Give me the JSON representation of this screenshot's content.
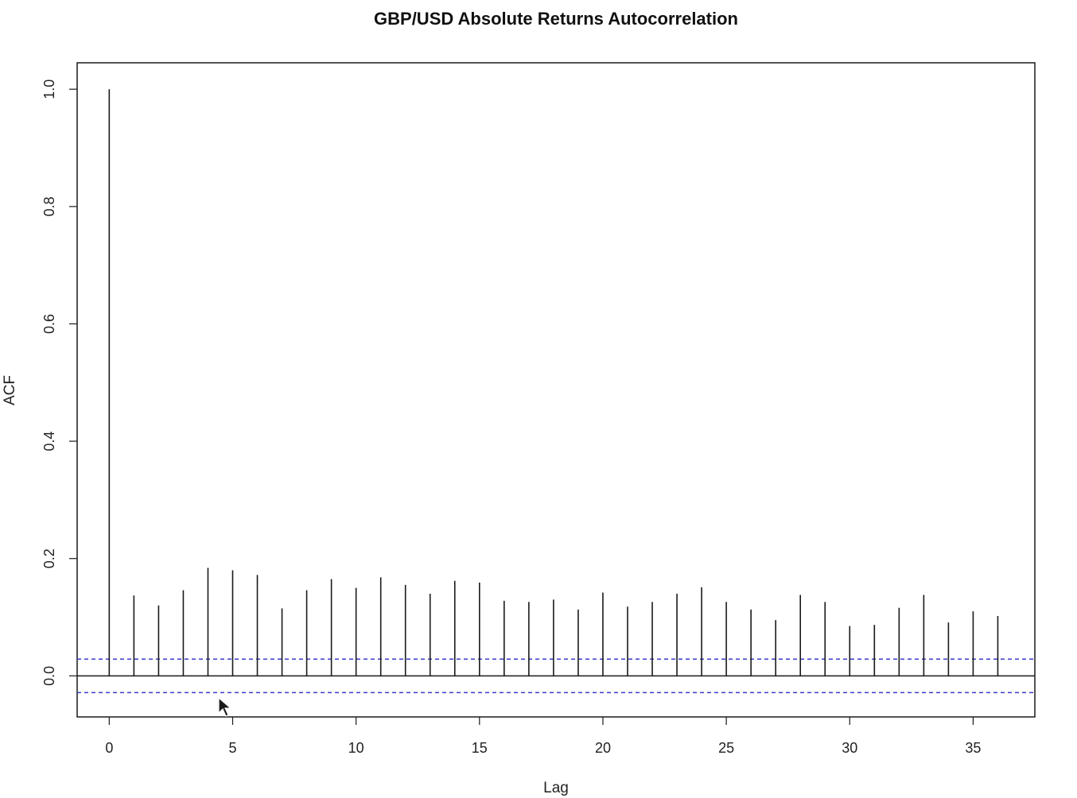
{
  "chart_data": {
    "type": "bar",
    "title": "GBP/USD Absolute Returns Autocorrelation",
    "xlabel": "Lag",
    "ylabel": "ACF",
    "xlim": [
      -1.3,
      37.5
    ],
    "ylim": [
      -0.07,
      1.045
    ],
    "x_ticks": [
      0,
      5,
      10,
      15,
      20,
      25,
      30,
      35
    ],
    "x_tick_labels": [
      "0",
      "5",
      "10",
      "15",
      "20",
      "25",
      "30",
      "35"
    ],
    "y_ticks": [
      0.0,
      0.2,
      0.4,
      0.6,
      0.8,
      1.0
    ],
    "y_tick_labels": [
      "0.0",
      "0.2",
      "0.4",
      "0.6",
      "0.8",
      "1.0"
    ],
    "lags": [
      0,
      1,
      2,
      3,
      4,
      5,
      6,
      7,
      8,
      9,
      10,
      11,
      12,
      13,
      14,
      15,
      16,
      17,
      18,
      19,
      20,
      21,
      22,
      23,
      24,
      25,
      26,
      27,
      28,
      29,
      30,
      31,
      32,
      33,
      34,
      35,
      36
    ],
    "acf": [
      1.0,
      0.137,
      0.12,
      0.146,
      0.184,
      0.18,
      0.172,
      0.115,
      0.146,
      0.165,
      0.15,
      0.168,
      0.155,
      0.14,
      0.162,
      0.159,
      0.128,
      0.126,
      0.13,
      0.113,
      0.142,
      0.118,
      0.126,
      0.14,
      0.151,
      0.126,
      0.113,
      0.095,
      0.138,
      0.126,
      0.085,
      0.087,
      0.116,
      0.138,
      0.091,
      0.11,
      0.102
    ],
    "confidence_bound": 0.0285,
    "grid": false,
    "colors": {
      "lines": "#1a1a1a",
      "confidence": "#3b3bcc",
      "frame": "#1a1a1a"
    }
  }
}
